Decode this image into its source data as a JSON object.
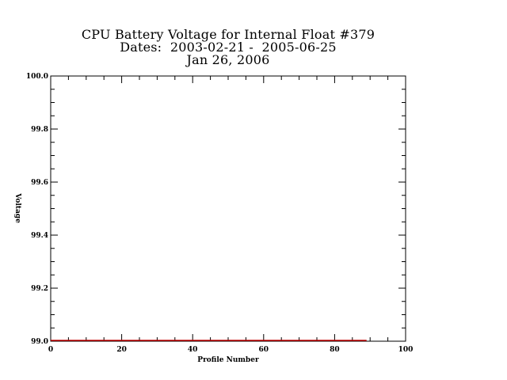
{
  "chart_data": {
    "type": "line",
    "title_lines": [
      "CPU Battery Voltage for Internal Float #379",
      "Dates:  2003-02-21 -  2005-06-25",
      "Jan 26, 2006"
    ],
    "xlabel": "Profile Number",
    "ylabel": "Voltage",
    "xlim": [
      0,
      100
    ],
    "ylim": [
      99.0,
      100.0
    ],
    "x_ticks": [
      "0",
      "20",
      "40",
      "60",
      "80",
      "100"
    ],
    "y_ticks": [
      "99.0",
      "99.2",
      "99.4",
      "99.6",
      "99.8",
      "100.0"
    ],
    "series": [
      {
        "color": "#c00000",
        "x": [
          0,
          89
        ],
        "y": [
          99.0,
          99.0
        ]
      }
    ],
    "grid": false
  }
}
